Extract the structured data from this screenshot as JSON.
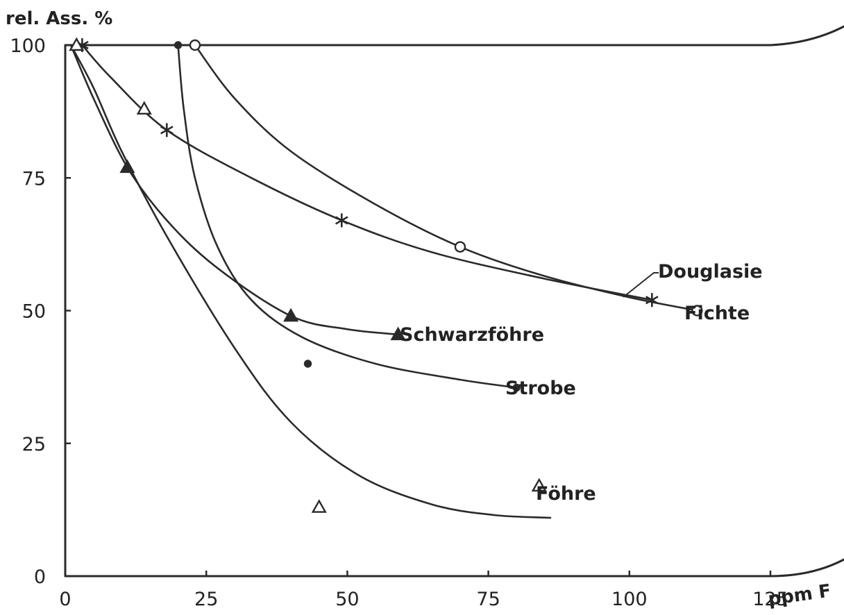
{
  "chart_data": {
    "type": "line",
    "ylabel": "rel. Ass. %",
    "xlabel": "ppm F",
    "xlim": [
      0,
      125
    ],
    "ylim": [
      0,
      100
    ],
    "x_ticks": [
      "0",
      "25",
      "50",
      "75",
      "100",
      "125"
    ],
    "y_ticks": [
      "0",
      "25",
      "50",
      "75",
      "100"
    ],
    "grid": false,
    "legend": "inline labels at curve ends",
    "series": [
      {
        "name": "Douglasie",
        "marker": "star",
        "points": [
          [
            3,
            100
          ],
          [
            18,
            84
          ],
          [
            49,
            67
          ],
          [
            104,
            52
          ]
        ],
        "curve": [
          [
            3,
            100
          ],
          [
            8,
            94
          ],
          [
            18,
            84
          ],
          [
            33,
            75
          ],
          [
            49,
            67
          ],
          [
            65,
            61
          ],
          [
            85,
            56
          ],
          [
            104,
            52
          ]
        ]
      },
      {
        "name": "Fichte",
        "marker": "open-circle",
        "points": [
          [
            23,
            100
          ],
          [
            70,
            62
          ],
          [
            112,
            50
          ]
        ],
        "curve": [
          [
            23,
            100
          ],
          [
            30,
            90
          ],
          [
            40,
            80
          ],
          [
            55,
            70
          ],
          [
            70,
            62
          ],
          [
            85,
            56.5
          ],
          [
            100,
            52.5
          ],
          [
            112,
            50
          ]
        ]
      },
      {
        "name": "Schwarzföhre",
        "marker": "filled-triangle",
        "points": [
          [
            11,
            77
          ],
          [
            40,
            49
          ],
          [
            59,
            45.5
          ]
        ],
        "curve": [
          [
            1,
            100
          ],
          [
            5,
            90
          ],
          [
            11,
            77
          ],
          [
            18,
            67
          ],
          [
            27,
            58
          ],
          [
            40,
            49
          ],
          [
            50,
            46.5
          ],
          [
            59,
            45.5
          ]
        ]
      },
      {
        "name": "Strobe",
        "marker": "filled-dot",
        "points": [
          [
            20,
            100
          ],
          [
            43,
            40
          ],
          [
            80,
            35.5
          ]
        ],
        "curve": [
          [
            20,
            100
          ],
          [
            21,
            88
          ],
          [
            23,
            75
          ],
          [
            27,
            62
          ],
          [
            33,
            52
          ],
          [
            42,
            45
          ],
          [
            55,
            40
          ],
          [
            70,
            37
          ],
          [
            80,
            35.5
          ]
        ]
      },
      {
        "name": "Föhre",
        "marker": "open-triangle",
        "points": [
          [
            2,
            100
          ],
          [
            14,
            88
          ],
          [
            45,
            13
          ],
          [
            84,
            17
          ]
        ],
        "curve": [
          [
            1,
            100
          ],
          [
            5,
            92
          ],
          [
            10,
            80
          ],
          [
            18,
            64
          ],
          [
            30,
            43
          ],
          [
            40,
            29
          ],
          [
            52,
            19
          ],
          [
            65,
            13.5
          ],
          [
            76,
            11.5
          ],
          [
            86,
            11
          ]
        ]
      }
    ]
  }
}
